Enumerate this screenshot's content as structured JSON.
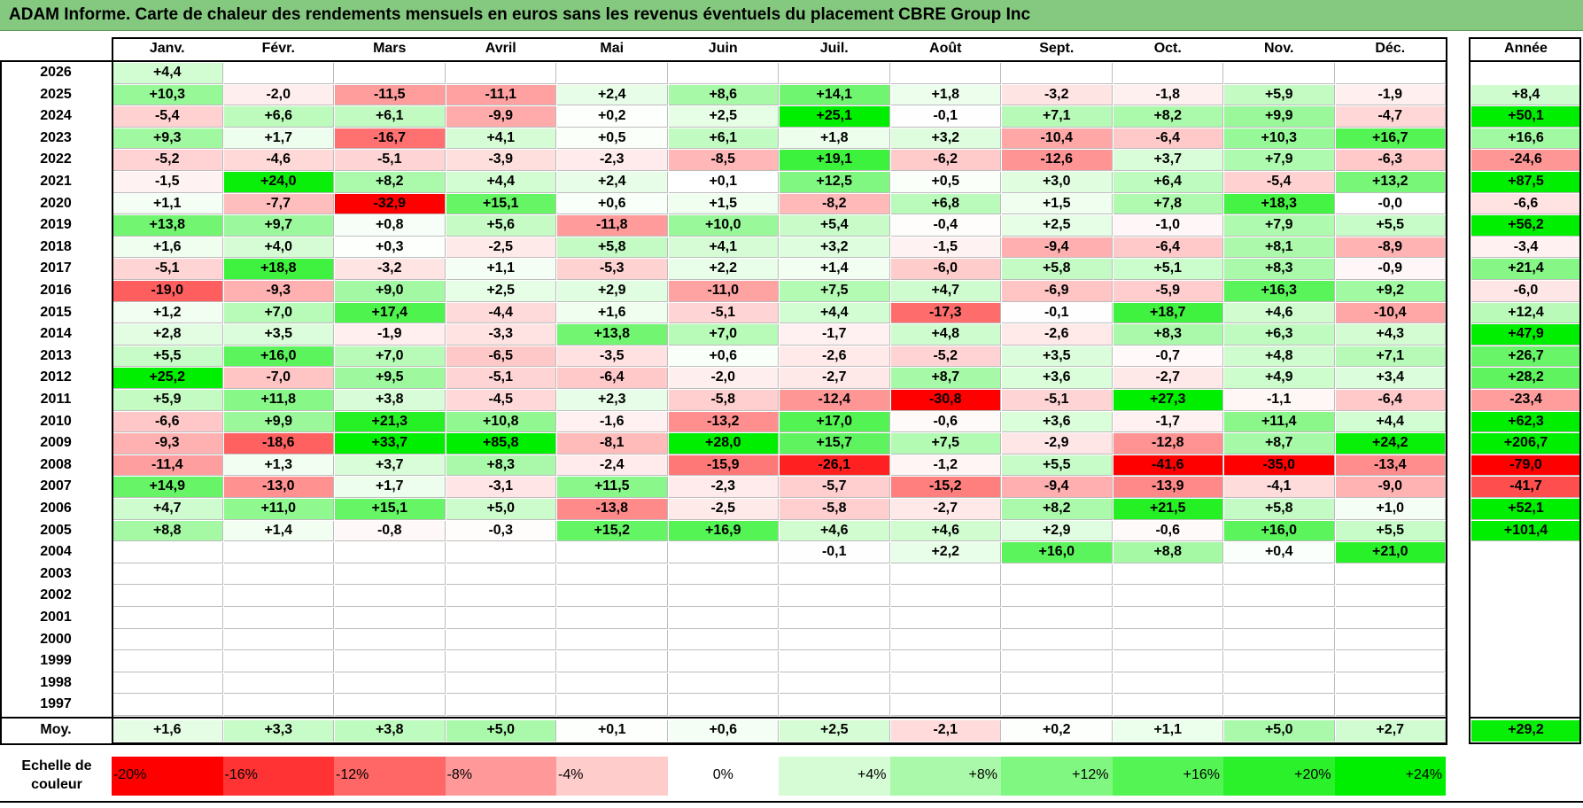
{
  "title": "ADAM Informe. Carte de chaleur des rendements mensuels en euros sans les revenus éventuels du placement CBRE Group Inc",
  "chart_data": {
    "type": "heatmap",
    "title": "ADAM Informe. Carte de chaleur des rendements mensuels en euros sans les revenus éventuels du placement CBRE Group Inc",
    "months": [
      "Janv.",
      "Févr.",
      "Mars",
      "Avril",
      "Mai",
      "Juin",
      "Juil.",
      "Août",
      "Sept.",
      "Oct.",
      "Nov.",
      "Déc."
    ],
    "annual_header": "Année",
    "rows": [
      {
        "year": "2026",
        "values": [
          "+4,4",
          "",
          "",
          "",
          "",
          "",
          "",
          "",
          "",
          "",
          "",
          ""
        ],
        "annual": ""
      },
      {
        "year": "2025",
        "values": [
          "+10,3",
          "-2,0",
          "-11,5",
          "-11,1",
          "+2,4",
          "+8,6",
          "+14,1",
          "+1,8",
          "-3,2",
          "-1,8",
          "+5,9",
          "-1,9"
        ],
        "annual": "+8,4"
      },
      {
        "year": "2024",
        "values": [
          "-5,4",
          "+6,6",
          "+6,1",
          "-9,9",
          "+0,2",
          "+2,5",
          "+25,1",
          "-0,1",
          "+7,1",
          "+8,2",
          "+9,9",
          "-4,7"
        ],
        "annual": "+50,1"
      },
      {
        "year": "2023",
        "values": [
          "+9,3",
          "+1,7",
          "-16,7",
          "+4,1",
          "+0,5",
          "+6,1",
          "+1,8",
          "+3,2",
          "-10,4",
          "-6,4",
          "+10,3",
          "+16,7"
        ],
        "annual": "+16,6"
      },
      {
        "year": "2022",
        "values": [
          "-5,2",
          "-4,6",
          "-5,1",
          "-3,9",
          "-2,3",
          "-8,5",
          "+19,1",
          "-6,2",
          "-12,6",
          "+3,7",
          "+7,9",
          "-6,3"
        ],
        "annual": "-24,6"
      },
      {
        "year": "2021",
        "values": [
          "-1,5",
          "+24,0",
          "+8,2",
          "+4,4",
          "+2,4",
          "+0,1",
          "+12,5",
          "+0,5",
          "+3,0",
          "+6,4",
          "-5,4",
          "+13,2"
        ],
        "annual": "+87,5"
      },
      {
        "year": "2020",
        "values": [
          "+1,1",
          "-7,7",
          "-32,9",
          "+15,1",
          "+0,6",
          "+1,5",
          "-8,2",
          "+6,8",
          "+1,5",
          "+7,8",
          "+18,3",
          "-0,0"
        ],
        "annual": "-6,6"
      },
      {
        "year": "2019",
        "values": [
          "+13,8",
          "+9,7",
          "+0,8",
          "+5,6",
          "-11,8",
          "+10,0",
          "+5,4",
          "-0,4",
          "+2,5",
          "-1,0",
          "+7,9",
          "+5,5"
        ],
        "annual": "+56,2"
      },
      {
        "year": "2018",
        "values": [
          "+1,6",
          "+4,0",
          "+0,3",
          "-2,5",
          "+5,8",
          "+4,1",
          "+3,2",
          "-1,5",
          "-9,4",
          "-6,4",
          "+8,1",
          "-8,9"
        ],
        "annual": "-3,4"
      },
      {
        "year": "2017",
        "values": [
          "-5,1",
          "+18,8",
          "-3,2",
          "+1,1",
          "-5,3",
          "+2,2",
          "+1,4",
          "-6,0",
          "+5,8",
          "+5,1",
          "+8,3",
          "-0,9"
        ],
        "annual": "+21,4"
      },
      {
        "year": "2016",
        "values": [
          "-19,0",
          "-9,3",
          "+9,0",
          "+2,5",
          "+2,9",
          "-11,0",
          "+7,5",
          "+4,7",
          "-6,9",
          "-5,9",
          "+16,3",
          "+9,2"
        ],
        "annual": "-6,0"
      },
      {
        "year": "2015",
        "values": [
          "+1,2",
          "+7,0",
          "+17,4",
          "-4,4",
          "+1,6",
          "-5,1",
          "+4,4",
          "-17,3",
          "-0,1",
          "+18,7",
          "+4,6",
          "-10,4"
        ],
        "annual": "+12,4"
      },
      {
        "year": "2014",
        "values": [
          "+2,8",
          "+3,5",
          "-1,9",
          "-3,3",
          "+13,8",
          "+7,0",
          "-1,7",
          "+4,8",
          "-2,6",
          "+8,3",
          "+6,3",
          "+4,3"
        ],
        "annual": "+47,9"
      },
      {
        "year": "2013",
        "values": [
          "+5,5",
          "+16,0",
          "+7,0",
          "-6,5",
          "-3,5",
          "+0,6",
          "-2,6",
          "-5,2",
          "+3,5",
          "-0,7",
          "+4,8",
          "+7,1"
        ],
        "annual": "+26,7"
      },
      {
        "year": "2012",
        "values": [
          "+25,2",
          "-7,0",
          "+9,5",
          "-5,1",
          "-6,4",
          "-2,0",
          "-2,7",
          "+8,7",
          "+3,6",
          "-2,7",
          "+4,9",
          "+3,4"
        ],
        "annual": "+28,2"
      },
      {
        "year": "2011",
        "values": [
          "+5,9",
          "+11,8",
          "+3,8",
          "-4,5",
          "+2,3",
          "-5,8",
          "-12,4",
          "-30,8",
          "-5,1",
          "+27,3",
          "-1,1",
          "-6,4"
        ],
        "annual": "-23,4"
      },
      {
        "year": "2010",
        "values": [
          "-6,6",
          "+9,9",
          "+21,3",
          "+10,8",
          "-1,6",
          "-13,2",
          "+17,0",
          "-0,6",
          "+3,6",
          "-1,7",
          "+11,4",
          "+4,4"
        ],
        "annual": "+62,3"
      },
      {
        "year": "2009",
        "values": [
          "-9,3",
          "-18,6",
          "+33,7",
          "+85,8",
          "-8,1",
          "+28,0",
          "+15,7",
          "+7,5",
          "-2,9",
          "-12,8",
          "+8,7",
          "+24,2"
        ],
        "annual": "+206,7"
      },
      {
        "year": "2008",
        "values": [
          "-11,4",
          "+1,3",
          "+3,7",
          "+8,3",
          "-2,4",
          "-15,9",
          "-26,1",
          "-1,2",
          "+5,5",
          "-41,6",
          "-35,0",
          "-13,4"
        ],
        "annual": "-79,0"
      },
      {
        "year": "2007",
        "values": [
          "+14,9",
          "-13,0",
          "+1,7",
          "-3,1",
          "+11,5",
          "-2,3",
          "-5,7",
          "-15,2",
          "-9,4",
          "-13,9",
          "-4,1",
          "-9,0"
        ],
        "annual": "-41,7"
      },
      {
        "year": "2006",
        "values": [
          "+4,7",
          "+11,0",
          "+15,1",
          "+5,0",
          "-13,8",
          "-2,5",
          "-5,8",
          "-2,7",
          "+8,2",
          "+21,5",
          "+5,8",
          "+1,0"
        ],
        "annual": "+52,1"
      },
      {
        "year": "2005",
        "values": [
          "+8,8",
          "+1,4",
          "-0,8",
          "-0,3",
          "+15,2",
          "+16,9",
          "+4,6",
          "+4,6",
          "+2,9",
          "-0,6",
          "+16,0",
          "+5,5"
        ],
        "annual": "+101,4"
      },
      {
        "year": "2004",
        "values": [
          "",
          "",
          "",
          "",
          "",
          "",
          "-0,1",
          "+2,2",
          "+16,0",
          "+8,8",
          "+0,4",
          "+21,0"
        ],
        "annual": ""
      },
      {
        "year": "2003",
        "values": [
          "",
          "",
          "",
          "",
          "",
          "",
          "",
          "",
          "",
          "",
          "",
          ""
        ],
        "annual": ""
      },
      {
        "year": "2002",
        "values": [
          "",
          "",
          "",
          "",
          "",
          "",
          "",
          "",
          "",
          "",
          "",
          ""
        ],
        "annual": ""
      },
      {
        "year": "2001",
        "values": [
          "",
          "",
          "",
          "",
          "",
          "",
          "",
          "",
          "",
          "",
          "",
          ""
        ],
        "annual": ""
      },
      {
        "year": "2000",
        "values": [
          "",
          "",
          "",
          "",
          "",
          "",
          "",
          "",
          "",
          "",
          "",
          ""
        ],
        "annual": ""
      },
      {
        "year": "1999",
        "values": [
          "",
          "",
          "",
          "",
          "",
          "",
          "",
          "",
          "",
          "",
          "",
          ""
        ],
        "annual": ""
      },
      {
        "year": "1998",
        "values": [
          "",
          "",
          "",
          "",
          "",
          "",
          "",
          "",
          "",
          "",
          "",
          ""
        ],
        "annual": ""
      },
      {
        "year": "1997",
        "values": [
          "",
          "",
          "",
          "",
          "",
          "",
          "",
          "",
          "",
          "",
          "",
          ""
        ],
        "annual": ""
      }
    ],
    "average": {
      "label": "Moy.",
      "values": [
        "+1,6",
        "+3,3",
        "+3,8",
        "+5,0",
        "+0,1",
        "+0,6",
        "+2,5",
        "-2,1",
        "+0,2",
        "+1,1",
        "+5,0",
        "+2,7"
      ],
      "annual": "+29,2"
    },
    "scale": {
      "label": "Echelle de couleur",
      "steps": [
        "-20%",
        "-16%",
        "-12%",
        "-8%",
        "-4%",
        "0%",
        "+4%",
        "+8%",
        "+12%",
        "+16%",
        "+20%",
        "+24%"
      ],
      "values": [
        -20,
        -16,
        -12,
        -8,
        -4,
        0,
        4,
        8,
        12,
        16,
        20,
        24
      ]
    },
    "colors": {
      "neg_max": "#ff0000",
      "neutral": "#ffffff",
      "pos_max": "#00ee00",
      "title_bg": "#84c97f"
    }
  }
}
